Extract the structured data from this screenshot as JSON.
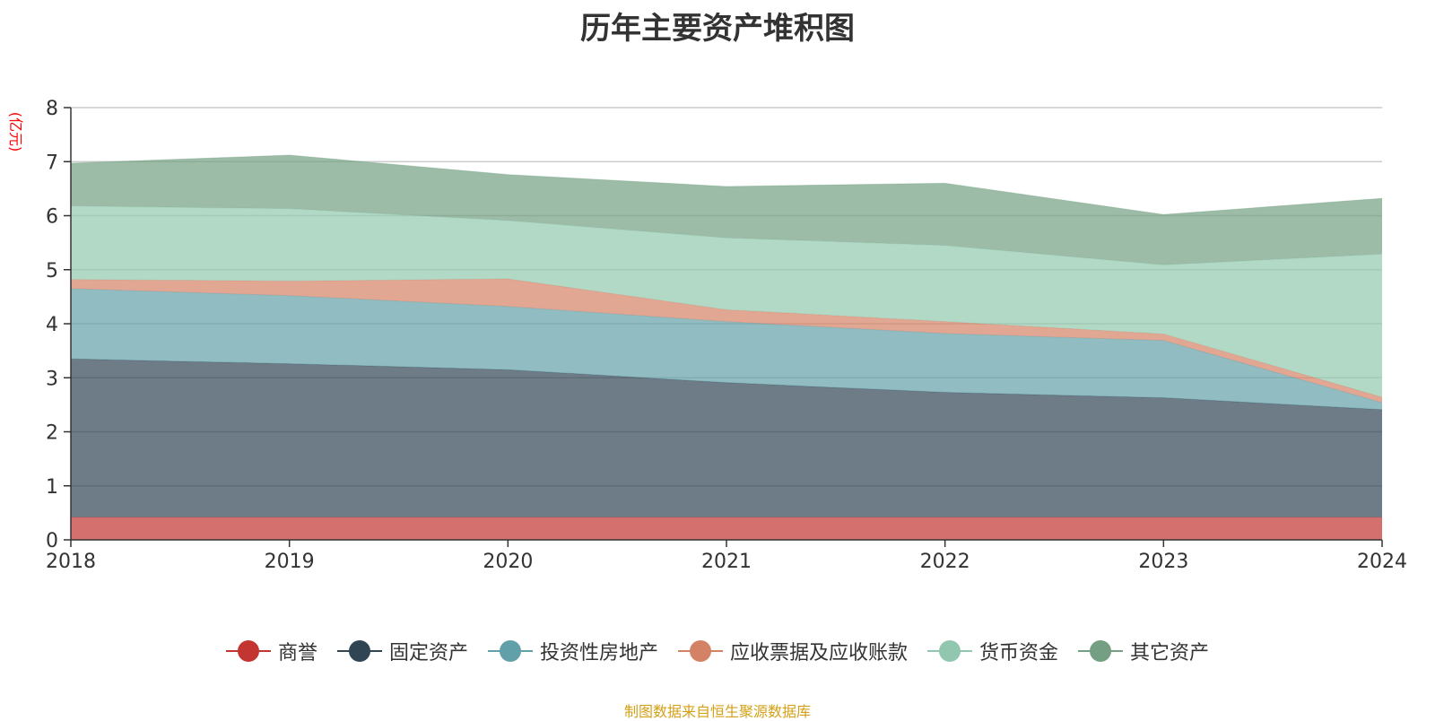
{
  "chart_data": {
    "type": "area",
    "stacked": true,
    "title": "历年主要资产堆积图",
    "ylabel": "(亿元)",
    "x": [
      "2018",
      "2019",
      "2020",
      "2021",
      "2022",
      "2023",
      "2024"
    ],
    "ylim": [
      0,
      8
    ],
    "yticks": [
      "0",
      "1",
      "2",
      "3",
      "4",
      "5",
      "6",
      "7",
      "8"
    ],
    "grid": true,
    "legend_position": "bottom",
    "series": [
      {
        "name": "商誉",
        "color": "#c23531",
        "values": [
          0.42,
          0.42,
          0.42,
          0.42,
          0.42,
          0.42,
          0.42
        ]
      },
      {
        "name": "固定资产",
        "color": "#2f4554",
        "values": [
          2.93,
          2.84,
          2.73,
          2.49,
          2.31,
          2.21,
          1.99
        ]
      },
      {
        "name": "投资性房地产",
        "color": "#61a0a8",
        "values": [
          1.3,
          1.26,
          1.17,
          1.13,
          1.09,
          1.06,
          0.13
        ]
      },
      {
        "name": "应收票据及应收账款",
        "color": "#d48265",
        "values": [
          0.17,
          0.27,
          0.51,
          0.22,
          0.22,
          0.12,
          0.1
        ]
      },
      {
        "name": "货币资金",
        "color": "#91c7ae",
        "values": [
          1.36,
          1.34,
          1.08,
          1.33,
          1.41,
          1.28,
          2.65
        ]
      },
      {
        "name": "其它资产",
        "color": "#749f83",
        "values": [
          0.79,
          0.99,
          0.85,
          0.95,
          1.15,
          0.93,
          1.03
        ]
      }
    ]
  },
  "source_note": "制图数据来自恒生聚源数据库"
}
